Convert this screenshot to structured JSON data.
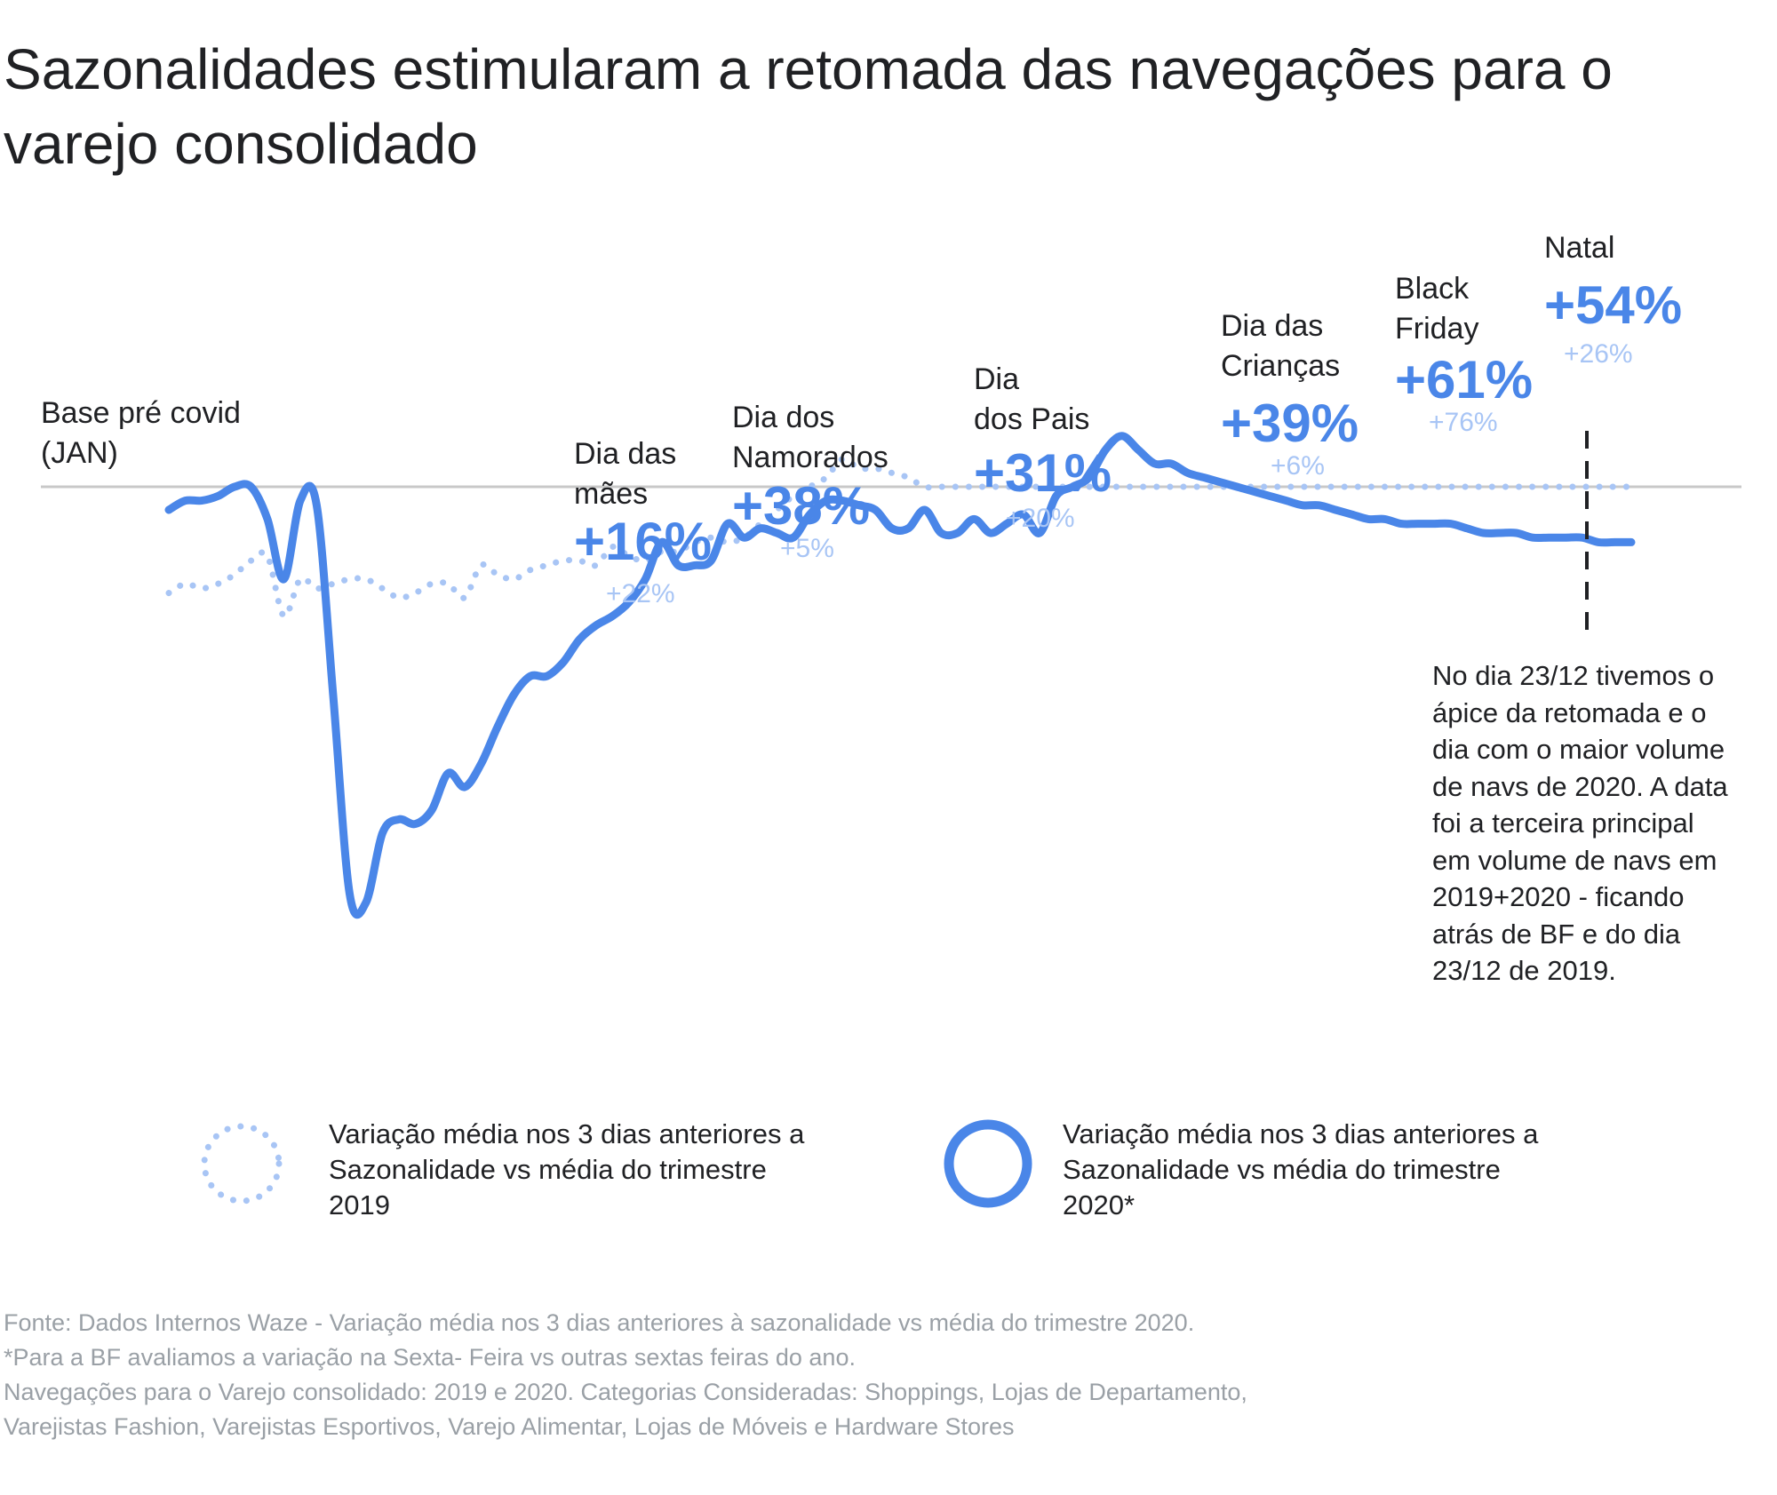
{
  "title": "Sazonalidades estimularam a retomada das navegações para o varejo consolidado",
  "colors": {
    "series_2020": "#4a86e8",
    "series_2019": "#a8c5f5",
    "baseline": "#c8c8c8",
    "text": "#202124",
    "muted": "#9aa0a6"
  },
  "chart_data": {
    "type": "line",
    "title": "Sazonalidades estimularam a retomada das navegações para o varejo consolidado",
    "xlabel": "",
    "ylabel": "",
    "baseline_label": [
      "Base pré covid",
      "(JAN)"
    ],
    "ylim": [
      -100,
      40
    ],
    "grid": false,
    "x": [
      0,
      1,
      2,
      3,
      4,
      5,
      6,
      7,
      8,
      9,
      10,
      11,
      12,
      13,
      14,
      15,
      16,
      17,
      18,
      19,
      20,
      21,
      22,
      23,
      24,
      25,
      26,
      27,
      28,
      29,
      30,
      31,
      32,
      33,
      34,
      35,
      36,
      37,
      38,
      39,
      40,
      41,
      42,
      43,
      44,
      45,
      46,
      47,
      48,
      49,
      50,
      51,
      52,
      53,
      54,
      55,
      56,
      57,
      58,
      59,
      60,
      61,
      62,
      63,
      64,
      65,
      66,
      67,
      68,
      69,
      70,
      71,
      72,
      73,
      74,
      75,
      76,
      77,
      78,
      79,
      80,
      81,
      82,
      83,
      84,
      85,
      86,
      87,
      88,
      89
    ],
    "series": [
      {
        "name": "Variação média nos 3 dias anteriores a Sazonalidade vs média do trimestre 2020*",
        "style": "solid",
        "values": [
          -5,
          -3,
          -3,
          -2,
          0,
          0,
          -7,
          -20,
          -3,
          -4,
          -45,
          -88,
          -90,
          -75,
          -72,
          -73,
          -70,
          -62,
          -65,
          -60,
          -52,
          -45,
          -41,
          -41,
          -38,
          -33,
          -30,
          -28,
          -25,
          -20,
          -12,
          -17,
          -17,
          -16,
          -8,
          -11,
          -9,
          -10,
          -11,
          -6,
          -3,
          -3,
          -4,
          -5,
          -9,
          -9,
          -5,
          -10,
          -10,
          -7,
          -10,
          -8,
          -6,
          -10,
          -2,
          0,
          2,
          8,
          11,
          8,
          5,
          5,
          3,
          2,
          1,
          0,
          -1,
          -2,
          -3,
          -4,
          -4,
          -5,
          -6,
          -7,
          -7,
          -8,
          -8,
          -8,
          -8,
          -9,
          -10,
          -10,
          -10,
          -11,
          -11,
          -11,
          -11,
          -12,
          -12,
          -12
        ]
      },
      {
        "name": "Variação média nos 3 dias anteriores a Sazonalidade vs média do trimestre 2019",
        "style": "dotted",
        "values": [
          -23,
          -21,
          -22,
          -21,
          -19,
          -16,
          -15,
          -28,
          -20,
          -22,
          -21,
          -20,
          -20,
          -22,
          -24,
          -23,
          -21,
          -21,
          -24,
          -17,
          -19,
          -20,
          -18,
          -17,
          -16,
          -16,
          -17,
          -13,
          -15,
          -16,
          -14,
          -14,
          -12,
          -11,
          -12,
          -11,
          -8,
          -5,
          -2,
          0,
          2,
          6,
          4,
          4,
          3,
          2,
          0,
          0,
          0,
          0,
          0,
          0,
          0,
          0,
          0,
          0,
          0,
          0,
          0,
          0,
          0,
          0,
          0,
          0,
          0,
          0,
          0,
          0,
          0,
          0,
          0,
          0,
          0,
          0,
          0,
          0,
          0,
          0,
          0,
          0,
          0,
          0,
          0,
          0,
          0,
          0,
          0,
          0,
          0,
          0
        ]
      }
    ],
    "annotations": [
      {
        "name": "dia-das-maes",
        "label": [
          "Dia das",
          "mães"
        ],
        "value_2020": "+16%",
        "value_2019": "+22%"
      },
      {
        "name": "dia-dos-namorados",
        "label": [
          "Dia dos",
          "Namorados"
        ],
        "value_2020": "+38%",
        "value_2019": "+5%"
      },
      {
        "name": "dia-dos-pais",
        "label": [
          "Dia",
          "dos Pais"
        ],
        "value_2020": "+31%",
        "value_2019": "+20%"
      },
      {
        "name": "dia-das-criancas",
        "label": [
          "Dia das",
          "Crianças"
        ],
        "value_2020": "+39%",
        "value_2019": "+6%"
      },
      {
        "name": "black-friday",
        "label": [
          "Black",
          "Friday"
        ],
        "value_2020": "+61%",
        "value_2019": "+76%"
      },
      {
        "name": "natal",
        "label": [
          "Natal"
        ],
        "value_2020": "+54%",
        "value_2019": "+26%"
      }
    ]
  },
  "annotation_note": "No dia 23/12 tivemos o ápice da retomada e o dia com o maior volume de navs de 2020. A data foi a terceira principal em volume de navs em 2019+2020 - ficando atrás de BF e do dia 23/12 de 2019.",
  "legend": {
    "item_2019": "Variação média nos 3 dias anteriores a Sazonalidade vs média do trimestre 2019",
    "item_2020": "Variação média nos 3 dias anteriores a Sazonalidade vs média do trimestre 2020*"
  },
  "source_lines": [
    "Fonte: Dados Internos Waze -  Variação média nos 3 dias anteriores à sazonalidade vs média do trimestre 2020.",
    "*Para a BF avaliamos a variação na Sexta- Feira vs outras sextas feiras do ano.",
    "Navegações para o Varejo consolidado: 2019 e 2020. Categorias Consideradas: Shoppings, Lojas de Departamento,",
    "Varejistas Fashion, Varejistas Esportivos, Varejo Alimentar, Lojas de Móveis e Hardware Stores"
  ]
}
